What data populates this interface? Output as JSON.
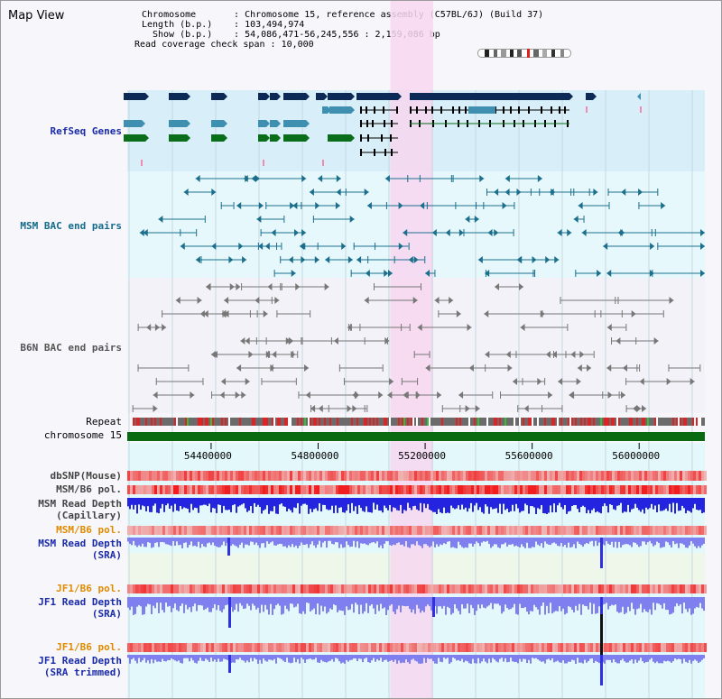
{
  "view_title": "Map View",
  "info": {
    "chromosome_label": "Chromosome",
    "chromosome_value": "Chromosome 15, reference assembly (C57BL/6J) (Build 37)",
    "length_label": "Length (b.p.)",
    "length_value": "103,494,974",
    "show_label": "Show (b.p.)",
    "show_value": "54,086,471-56,245,556 : 2,159,086 bp",
    "span_label": "Read coverage check span",
    "span_value": "10,000"
  },
  "tracks": {
    "refseq": "RefSeq Genes",
    "msm_bac": "MSM BAC end pairs",
    "b6n_bac": "B6N BAC end pairs",
    "repeat": "Repeat",
    "chromosome": "chromosome 15",
    "dbsnp": "dbSNP(Mouse)",
    "msm_b6_pol_1": "MSM/B6 pol.",
    "msm_read_depth_cap_1": "MSM Read Depth",
    "msm_read_depth_cap_2": "(Capillary)",
    "msm_b6_pol_2": "MSM/B6 pol.",
    "msm_read_depth_sra_1": "MSM Read Depth",
    "msm_read_depth_sra_2": "(SRA)",
    "jf1_b6_pol_1": "JF1/B6 pol.",
    "jf1_read_depth_sra_1": "JF1 Read Depth",
    "jf1_read_depth_sra_2": "(SRA)",
    "jf1_b6_pol_2": "JF1/B6 pol.",
    "jf1_read_depth_trim_1": "JF1 Read Depth",
    "jf1_read_depth_trim_2": "(SRA trimmed)"
  },
  "axis": {
    "ticks": [
      "54400000",
      "54800000",
      "55200000",
      "55600000",
      "56000000"
    ],
    "tick_values": [
      54400000,
      54800000,
      55200000,
      55600000,
      56000000
    ],
    "view_start": 54086471,
    "view_end": 56245556,
    "highlight_start": 55070000,
    "highlight_end": 55230000
  },
  "colors": {
    "refseq_bg": "#d8eef8",
    "msm_bg": "#e6f8fb",
    "b6n_bg": "#f2f2f8",
    "highlight": "#f7d7f0",
    "gene_dark": "#0d2a57",
    "gene_teal": "#3f8fb0",
    "gene_green": "#0a6d1a",
    "chrom_bar": "#0a6a12",
    "msm_line": "#1c6f8c",
    "b6n_line": "#777777",
    "depth_blue": "#2424e0",
    "depth_light": "#7f7ff0",
    "pol_red": "#ee2a2a"
  }
}
